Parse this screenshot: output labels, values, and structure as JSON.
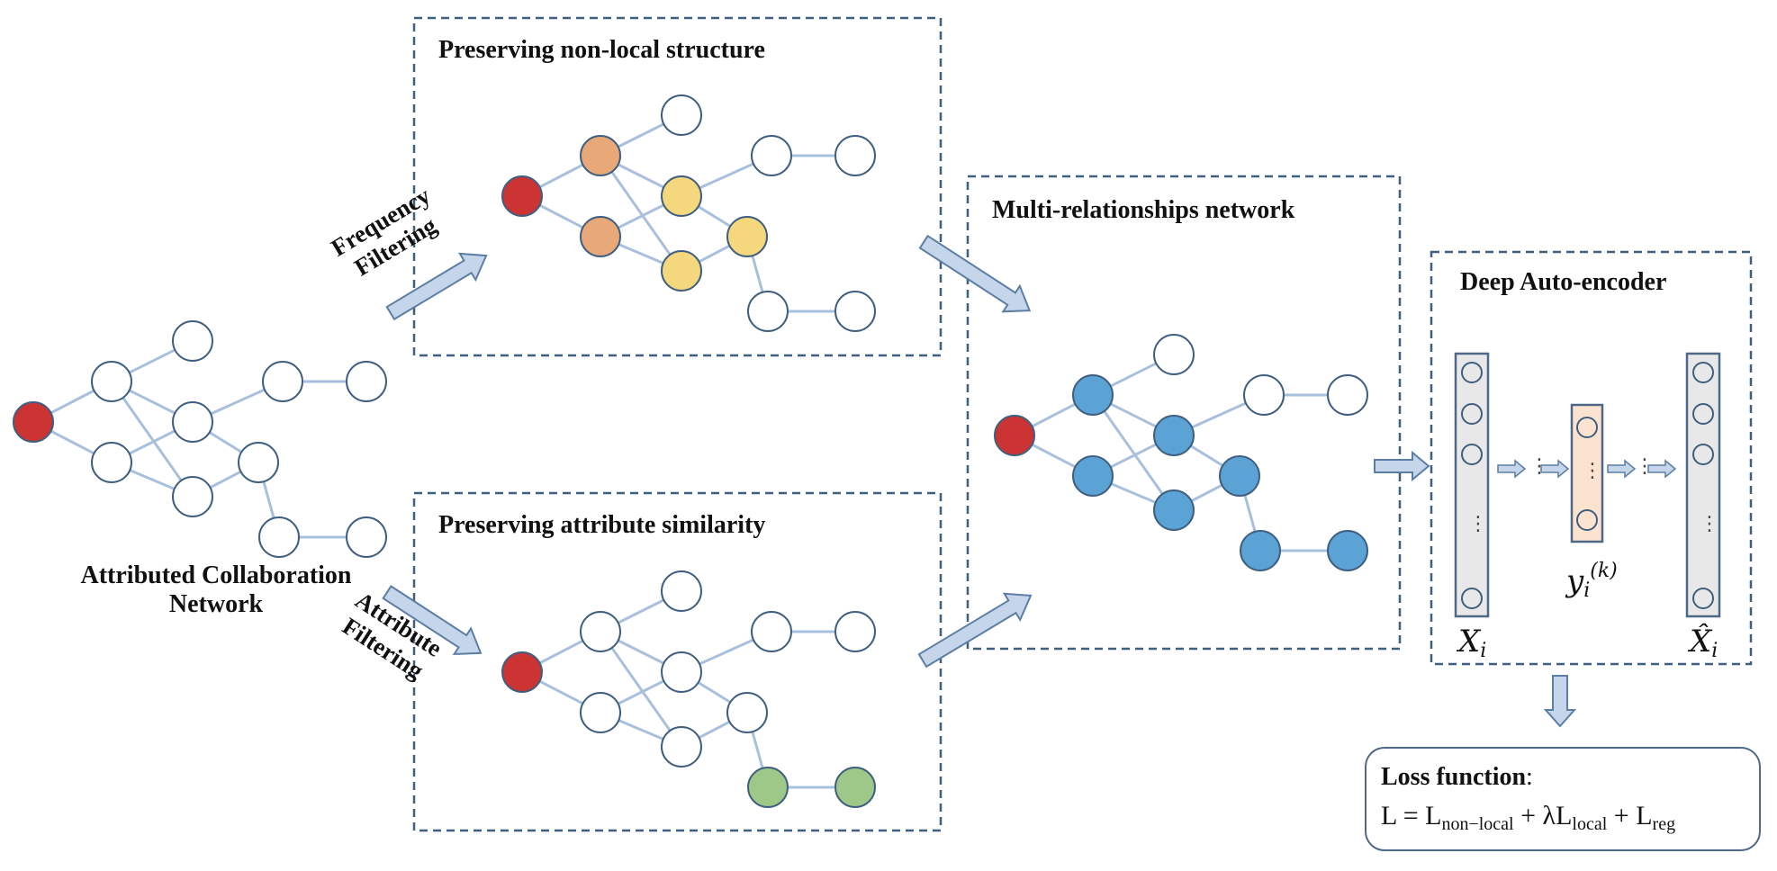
{
  "colors": {
    "edge": "#a9c0dc",
    "node_stroke": "#3f5f80",
    "red": "#cc3333",
    "orange": "#e8a878",
    "yellow": "#f5d77e",
    "green": "#9dc888",
    "blue": "#5ba3d4",
    "box_border": "#3f5f80",
    "arrow_fill": "#c5d6ea",
    "encoder_fill": "#e8e8e8",
    "code_fill": "#fbe3cf"
  },
  "labels": {
    "input_network": "Attributed Collaboration\nNetwork",
    "frequency_filtering": "Frequency\nFiltering",
    "attribute_filtering": "Attribute\nFiltering",
    "nonlocal_title": "Preserving non-local structure",
    "attribute_title": "Preserving attribute similarity",
    "multi_title": "Multi-relationships network",
    "autoencoder_title": "Deep Auto-encoder"
  },
  "autoencoder": {
    "input_var": "X",
    "input_sub": "i",
    "code_var": "y",
    "code_sub": "i",
    "code_sup": "(k)",
    "output_var": "X̂",
    "output_sub": "i"
  },
  "loss": {
    "title": "Loss function",
    "colon": ":",
    "eq_lhs": "L = L",
    "t1_sub": "non−local",
    "plus1": " + λL",
    "t2_sub": "local",
    "plus2": " + L",
    "t3_sub": "reg"
  },
  "graphs": {
    "original": [
      "red",
      "white",
      "white",
      "white",
      "white",
      "white",
      "white",
      "white",
      "white",
      "white",
      "white"
    ],
    "nonlocal": [
      "red",
      "orange",
      "orange",
      "white",
      "yellow",
      "yellow",
      "yellow",
      "white",
      "white",
      "white",
      "white"
    ],
    "attribute": [
      "red",
      "white",
      "white",
      "white",
      "white",
      "white",
      "white",
      "white",
      "green",
      "white",
      "green"
    ],
    "multi": [
      "red",
      "blue",
      "blue",
      "white",
      "blue",
      "blue",
      "blue",
      "white",
      "blue",
      "white",
      "blue"
    ]
  }
}
